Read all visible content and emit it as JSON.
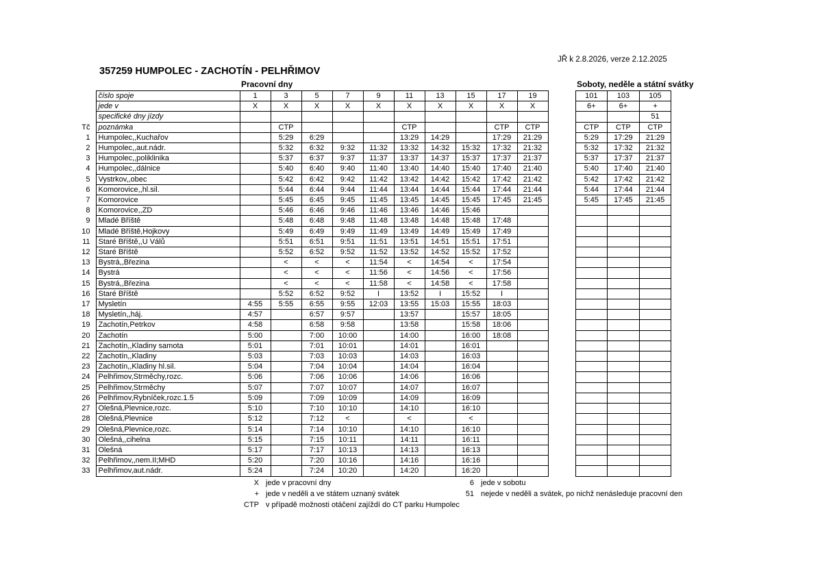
{
  "page": {
    "version_note": "JŘ k 2.8.2026, verze 2.12.2025",
    "title": "357259 HUMPOLEC - ZACHOTÍN - PELHŘIMOV",
    "workdays_title": "Pracovní dny",
    "weekend_title": "Soboty, neděle a státní svátky"
  },
  "header": {
    "rows": [
      {
        "tc": "",
        "label": "číslo spoje",
        "left": [
          "1",
          "3",
          "5",
          "7",
          "9",
          "11",
          "13",
          "15",
          "17",
          "19"
        ],
        "right": [
          "101",
          "103",
          "105"
        ]
      },
      {
        "tc": "",
        "label": "jede v",
        "left": [
          "X",
          "X",
          "X",
          "X",
          "X",
          "X",
          "X",
          "X",
          "X",
          "X"
        ],
        "right": [
          "6+",
          "6+",
          "+"
        ]
      },
      {
        "tc": "",
        "label": "specifické dny jízdy",
        "left": [
          "",
          "",
          "",
          "",
          "",
          "",
          "",
          "",
          "",
          ""
        ],
        "right": [
          "",
          "",
          "51"
        ]
      },
      {
        "tc": "Tč",
        "label": "poznámka",
        "left": [
          "",
          "CTP",
          "",
          "",
          "",
          "CTP",
          "",
          "",
          "CTP",
          "CTP"
        ],
        "right": [
          "CTP",
          "CTP",
          "CTP"
        ]
      }
    ]
  },
  "rows": [
    {
      "tc": "1",
      "stop": "Humpolec,,Kuchařov",
      "left": [
        "",
        "5:29",
        "6:29",
        "",
        "",
        "13:29",
        "14:29",
        "",
        "17:29",
        "21:29"
      ],
      "right": [
        "5:29",
        "17:29",
        "21:29"
      ]
    },
    {
      "tc": "2",
      "stop": "Humpolec,,aut.nádr.",
      "left": [
        "",
        "5:32",
        "6:32",
        "9:32",
        "11:32",
        "13:32",
        "14:32",
        "15:32",
        "17:32",
        "21:32"
      ],
      "right": [
        "5:32",
        "17:32",
        "21:32"
      ]
    },
    {
      "tc": "3",
      "stop": "Humpolec,,poliklinika",
      "left": [
        "",
        "5:37",
        "6:37",
        "9:37",
        "11:37",
        "13:37",
        "14:37",
        "15:37",
        "17:37",
        "21:37"
      ],
      "right": [
        "5:37",
        "17:37",
        "21:37"
      ]
    },
    {
      "tc": "4",
      "stop": "Humpolec,,dálnice",
      "left": [
        "",
        "5:40",
        "6:40",
        "9:40",
        "11:40",
        "13:40",
        "14:40",
        "15:40",
        "17:40",
        "21:40"
      ],
      "right": [
        "5:40",
        "17:40",
        "21:40"
      ]
    },
    {
      "tc": "5",
      "stop": "Vystrkov,,obec",
      "left": [
        "",
        "5:42",
        "6:42",
        "9:42",
        "11:42",
        "13:42",
        "14:42",
        "15:42",
        "17:42",
        "21:42"
      ],
      "right": [
        "5:42",
        "17:42",
        "21:42"
      ]
    },
    {
      "tc": "6",
      "stop": "Komorovice,,hl.sil.",
      "left": [
        "",
        "5:44",
        "6:44",
        "9:44",
        "11:44",
        "13:44",
        "14:44",
        "15:44",
        "17:44",
        "21:44"
      ],
      "right": [
        "5:44",
        "17:44",
        "21:44"
      ]
    },
    {
      "tc": "7",
      "stop": "Komorovice",
      "left": [
        "",
        "5:45",
        "6:45",
        "9:45",
        "11:45",
        "13:45",
        "14:45",
        "15:45",
        "17:45",
        "21:45"
      ],
      "right": [
        "5:45",
        "17:45",
        "21:45"
      ]
    },
    {
      "tc": "8",
      "stop": "Komorovice,,ZD",
      "left": [
        "",
        "5:46",
        "6:46",
        "9:46",
        "11:46",
        "13:46",
        "14:46",
        "15:46",
        "",
        ""
      ],
      "right": [
        "",
        "",
        ""
      ]
    },
    {
      "tc": "9",
      "stop": "Mladé Bříště",
      "left": [
        "",
        "5:48",
        "6:48",
        "9:48",
        "11:48",
        "13:48",
        "14:48",
        "15:48",
        "17:48",
        ""
      ],
      "right": [
        "",
        "",
        ""
      ]
    },
    {
      "tc": "10",
      "stop": "Mladé Bříště,Hojkovy",
      "left": [
        "",
        "5:49",
        "6:49",
        "9:49",
        "11:49",
        "13:49",
        "14:49",
        "15:49",
        "17:49",
        ""
      ],
      "right": [
        "",
        "",
        ""
      ]
    },
    {
      "tc": "11",
      "stop": "Staré Bříště,,U Válů",
      "left": [
        "",
        "5:51",
        "6:51",
        "9:51",
        "11:51",
        "13:51",
        "14:51",
        "15:51",
        "17:51",
        ""
      ],
      "right": [
        "",
        "",
        ""
      ]
    },
    {
      "tc": "12",
      "stop": "Staré Bříště",
      "left": [
        "",
        "5:52",
        "6:52",
        "9:52",
        "11:52",
        "13:52",
        "14:52",
        "15:52",
        "17:52",
        ""
      ],
      "right": [
        "",
        "",
        ""
      ]
    },
    {
      "tc": "13",
      "stop": "Bystrá,,Březina",
      "left": [
        "",
        "<",
        "<",
        "<",
        "11:54",
        "<",
        "14:54",
        "<",
        "17:54",
        ""
      ],
      "right": [
        "",
        "",
        ""
      ]
    },
    {
      "tc": "14",
      "stop": "Bystrá",
      "left": [
        "",
        "<",
        "<",
        "<",
        "11:56",
        "<",
        "14:56",
        "<",
        "17:56",
        ""
      ],
      "right": [
        "",
        "",
        ""
      ]
    },
    {
      "tc": "15",
      "stop": "Bystrá,,Březina",
      "left": [
        "",
        "<",
        "<",
        "<",
        "11:58",
        "<",
        "14:58",
        "<",
        "17:58",
        ""
      ],
      "right": [
        "",
        "",
        ""
      ]
    },
    {
      "tc": "16",
      "stop": "Staré Bříště",
      "left": [
        "",
        "5:52",
        "6:52",
        "9:52",
        "I",
        "13:52",
        "I",
        "15:52",
        "I",
        ""
      ],
      "right": [
        "",
        "",
        ""
      ]
    },
    {
      "tc": "17",
      "stop": "Mysletín",
      "left": [
        "4:55",
        "5:55",
        "6:55",
        "9:55",
        "12:03",
        "13:55",
        "15:03",
        "15:55",
        "18:03",
        ""
      ],
      "right": [
        "",
        "",
        ""
      ]
    },
    {
      "tc": "18",
      "stop": "Mysletín,,háj.",
      "left": [
        "4:57",
        "",
        "6:57",
        "9:57",
        "",
        "13:57",
        "",
        "15:57",
        "18:05",
        ""
      ],
      "right": [
        "",
        "",
        ""
      ]
    },
    {
      "tc": "19",
      "stop": "Zachotín,Petrkov",
      "left": [
        "4:58",
        "",
        "6:58",
        "9:58",
        "",
        "13:58",
        "",
        "15:58",
        "18:06",
        ""
      ],
      "right": [
        "",
        "",
        ""
      ]
    },
    {
      "tc": "20",
      "stop": "Zachotín",
      "left": [
        "5:00",
        "",
        "7:00",
        "10:00",
        "",
        "14:00",
        "",
        "16:00",
        "18:08",
        ""
      ],
      "right": [
        "",
        "",
        ""
      ]
    },
    {
      "tc": "21",
      "stop": "Zachotín,,Kladiny samota",
      "left": [
        "5:01",
        "",
        "7:01",
        "10:01",
        "",
        "14:01",
        "",
        "16:01",
        "",
        ""
      ],
      "right": [
        "",
        "",
        ""
      ]
    },
    {
      "tc": "22",
      "stop": "Zachotín,,Kladiny",
      "left": [
        "5:03",
        "",
        "7:03",
        "10:03",
        "",
        "14:03",
        "",
        "16:03",
        "",
        ""
      ],
      "right": [
        "",
        "",
        ""
      ]
    },
    {
      "tc": "23",
      "stop": "Zachotín,,Kladiny hl.sil.",
      "left": [
        "5:04",
        "",
        "7:04",
        "10:04",
        "",
        "14:04",
        "",
        "16:04",
        "",
        ""
      ],
      "right": [
        "",
        "",
        ""
      ]
    },
    {
      "tc": "24",
      "stop": "Pelhřimov,Strměchy,rozc.",
      "left": [
        "5:06",
        "",
        "7:06",
        "10:06",
        "",
        "14:06",
        "",
        "16:06",
        "",
        ""
      ],
      "right": [
        "",
        "",
        ""
      ]
    },
    {
      "tc": "25",
      "stop": "Pelhřimov,Strměchy",
      "left": [
        "5:07",
        "",
        "7:07",
        "10:07",
        "",
        "14:07",
        "",
        "16:07",
        "",
        ""
      ],
      "right": [
        "",
        "",
        ""
      ]
    },
    {
      "tc": "26",
      "stop": "Pelhřimov,Rybníček,rozc.1.5",
      "left": [
        "5:09",
        "",
        "7:09",
        "10:09",
        "",
        "14:09",
        "",
        "16:09",
        "",
        ""
      ],
      "right": [
        "",
        "",
        ""
      ]
    },
    {
      "tc": "27",
      "stop": "Olešná,Plevnice,rozc.",
      "left": [
        "5:10",
        "",
        "7:10",
        "10:10",
        "",
        "14:10",
        "",
        "16:10",
        "",
        ""
      ],
      "right": [
        "",
        "",
        ""
      ]
    },
    {
      "tc": "28",
      "stop": "Olešná,Plevnice",
      "left": [
        "5:12",
        "",
        "7:12",
        "<",
        "",
        "<",
        "",
        "<",
        "",
        ""
      ],
      "right": [
        "",
        "",
        ""
      ]
    },
    {
      "tc": "29",
      "stop": "Olešná,Plevnice,rozc.",
      "left": [
        "5:14",
        "",
        "7:14",
        "10:10",
        "",
        "14:10",
        "",
        "16:10",
        "",
        ""
      ],
      "right": [
        "",
        "",
        ""
      ]
    },
    {
      "tc": "30",
      "stop": "Olešná,,cihelna",
      "left": [
        "5:15",
        "",
        "7:15",
        "10:11",
        "",
        "14:11",
        "",
        "16:11",
        "",
        ""
      ],
      "right": [
        "",
        "",
        ""
      ]
    },
    {
      "tc": "31",
      "stop": "Olešná",
      "left": [
        "5:17",
        "",
        "7:17",
        "10:13",
        "",
        "14:13",
        "",
        "16:13",
        "",
        ""
      ],
      "right": [
        "",
        "",
        ""
      ]
    },
    {
      "tc": "32",
      "stop": "Pelhřimov,,nem.II;MHD",
      "left": [
        "5:20",
        "",
        "7:20",
        "10:16",
        "",
        "14:16",
        "",
        "16:16",
        "",
        ""
      ],
      "right": [
        "",
        "",
        ""
      ]
    },
    {
      "tc": "33",
      "stop": "Pelhřimov,aut.nádr.",
      "left": [
        "5:24",
        "",
        "7:24",
        "10:20",
        "",
        "14:20",
        "",
        "16:20",
        "",
        ""
      ],
      "right": [
        "",
        "",
        ""
      ]
    }
  ],
  "legend": {
    "left": [
      {
        "sym": "X",
        "text": "jede v pracovní dny"
      },
      {
        "sym": "+",
        "text": "jede v neděli a ve státem uznaný svátek"
      },
      {
        "sym": "CTP",
        "text": "v případě možnosti otáčení zajíždí do CT parku Humpolec"
      }
    ],
    "right": [
      {
        "sym": "6",
        "text": "jede v sobotu"
      },
      {
        "sym": "51",
        "text": "nejede v neděli a svátek, po nichž nenásleduje pracovní den"
      }
    ]
  }
}
